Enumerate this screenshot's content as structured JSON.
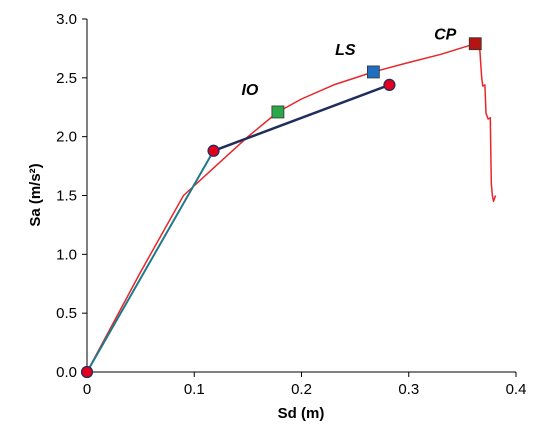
{
  "chart_data": {
    "type": "line",
    "xlabel": "Sd (m)",
    "ylabel": "Sa (m/s²)",
    "xlim": [
      0,
      0.4
    ],
    "ylim": [
      0,
      3.0
    ],
    "x_ticks": [
      "0",
      "0.1",
      "0.2",
      "0.3",
      "0.4"
    ],
    "y_ticks": [
      "0.0",
      "0.5",
      "1.0",
      "1.5",
      "2.0",
      "2.5",
      "3.0"
    ],
    "grid": false,
    "legend": "none",
    "series": [
      {
        "color": "#e8262a",
        "points": [
          [
            0,
            0
          ],
          [
            0.05,
            0.85
          ],
          [
            0.09,
            1.5
          ],
          [
            0.12,
            1.75
          ],
          [
            0.15,
            2.0
          ],
          [
            0.178,
            2.21
          ],
          [
            0.2,
            2.32
          ],
          [
            0.23,
            2.44
          ],
          [
            0.267,
            2.55
          ],
          [
            0.3,
            2.63
          ],
          [
            0.33,
            2.7
          ],
          [
            0.362,
            2.79
          ],
          [
            0.366,
            2.78
          ],
          [
            0.368,
            2.5
          ],
          [
            0.369,
            2.43
          ],
          [
            0.371,
            2.44
          ],
          [
            0.372,
            2.2
          ],
          [
            0.374,
            2.15
          ],
          [
            0.376,
            2.16
          ],
          [
            0.377,
            1.6
          ],
          [
            0.378,
            1.5
          ],
          [
            0.379,
            1.45
          ],
          [
            0.381,
            1.5
          ]
        ]
      },
      {
        "color": "#1f7a8c",
        "points": [
          [
            0,
            0
          ],
          [
            0.118,
            1.88
          ]
        ]
      },
      {
        "color": "#1f2d5c",
        "points": [
          [
            0.118,
            1.88
          ],
          [
            0.282,
            2.44
          ]
        ],
        "markers": {
          "shape": "circle",
          "color": "#e1001e"
        }
      }
    ],
    "markers": [
      {
        "x": 0,
        "y": 0,
        "shape": "circle",
        "color": "#e1001e"
      },
      {
        "x": 0.118,
        "y": 1.88,
        "shape": "circle",
        "color": "#e1001e"
      },
      {
        "x": 0.282,
        "y": 2.44,
        "shape": "circle",
        "color": "#e1001e"
      }
    ],
    "performance_points": [
      {
        "label": "IO",
        "x": 0.178,
        "y": 2.21,
        "color": "#2aa84a"
      },
      {
        "label": "LS",
        "x": 0.267,
        "y": 2.55,
        "color": "#1f6fc1"
      },
      {
        "label": "CP",
        "x": 0.362,
        "y": 2.79,
        "color": "#b31515"
      }
    ]
  }
}
